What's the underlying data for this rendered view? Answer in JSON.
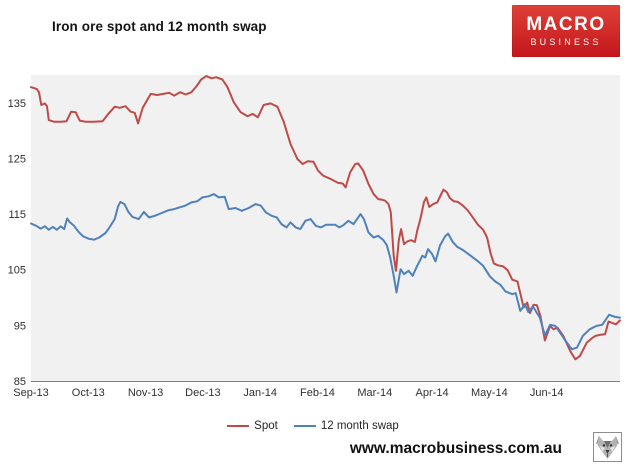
{
  "title": "Iron ore spot and 12 month swap",
  "branding": {
    "logo_line1": "MACRO",
    "logo_line2": "BUSINESS",
    "logo_bg_top": "#de4137",
    "logo_bg_bottom": "#c3161c"
  },
  "footer": {
    "url": "www.macrobusiness.com.au",
    "icon": "wolf-mascot-icon"
  },
  "legend": {
    "items": [
      {
        "label": "Spot",
        "color": "#be4b48"
      },
      {
        "label": "12 month swap",
        "color": "#4f81bd"
      }
    ]
  },
  "chart_data": {
    "type": "line",
    "title": "Iron ore spot and 12 month swap",
    "x_unit": "months since Sep-2013",
    "x_tick_labels": [
      "Sep-13",
      "Oct-13",
      "Nov-13",
      "Dec-13",
      "Jan-14",
      "Feb-14",
      "Mar-14",
      "Apr-14",
      "May-14",
      "Jun-14"
    ],
    "x_tick_positions": [
      0,
      1,
      2,
      3,
      4,
      5,
      6,
      7,
      8,
      9
    ],
    "xlim": [
      0,
      10.28
    ],
    "y_ticks": [
      85,
      95,
      105,
      115,
      125,
      135
    ],
    "ylim": [
      85,
      140
    ],
    "grid": false,
    "legend_position": "bottom-center",
    "plot_bg": "#f1f1f1",
    "axis_color": "#7f7f7f",
    "label_color": "#303030",
    "series": [
      {
        "name": "Spot",
        "color": "#be4b48",
        "points": [
          [
            0.0,
            137.8
          ],
          [
            0.1,
            137.5
          ],
          [
            0.14,
            136.9
          ],
          [
            0.18,
            134.6
          ],
          [
            0.24,
            134.9
          ],
          [
            0.28,
            134.4
          ],
          [
            0.31,
            131.9
          ],
          [
            0.4,
            131.6
          ],
          [
            0.52,
            131.6
          ],
          [
            0.62,
            131.7
          ],
          [
            0.7,
            133.4
          ],
          [
            0.78,
            133.3
          ],
          [
            0.85,
            131.8
          ],
          [
            0.95,
            131.6
          ],
          [
            1.1,
            131.6
          ],
          [
            1.25,
            131.7
          ],
          [
            1.35,
            133.0
          ],
          [
            1.46,
            134.3
          ],
          [
            1.55,
            134.1
          ],
          [
            1.65,
            134.4
          ],
          [
            1.74,
            133.4
          ],
          [
            1.81,
            133.2
          ],
          [
            1.87,
            131.3
          ],
          [
            1.95,
            134.1
          ],
          [
            2.01,
            135.2
          ],
          [
            2.09,
            136.6
          ],
          [
            2.2,
            136.4
          ],
          [
            2.31,
            136.6
          ],
          [
            2.41,
            136.8
          ],
          [
            2.5,
            136.3
          ],
          [
            2.6,
            136.9
          ],
          [
            2.7,
            136.5
          ],
          [
            2.8,
            136.9
          ],
          [
            2.89,
            138.0
          ],
          [
            2.97,
            139.2
          ],
          [
            3.06,
            139.8
          ],
          [
            3.15,
            139.4
          ],
          [
            3.23,
            139.6
          ],
          [
            3.34,
            139.2
          ],
          [
            3.43,
            137.8
          ],
          [
            3.54,
            135.1
          ],
          [
            3.66,
            133.3
          ],
          [
            3.78,
            132.6
          ],
          [
            3.87,
            133.0
          ],
          [
            3.96,
            132.4
          ],
          [
            4.06,
            134.6
          ],
          [
            4.18,
            134.9
          ],
          [
            4.3,
            134.3
          ],
          [
            4.41,
            131.6
          ],
          [
            4.47,
            129.6
          ],
          [
            4.53,
            127.6
          ],
          [
            4.65,
            124.9
          ],
          [
            4.74,
            124.0
          ],
          [
            4.83,
            124.5
          ],
          [
            4.93,
            124.4
          ],
          [
            5.01,
            122.8
          ],
          [
            5.1,
            121.9
          ],
          [
            5.23,
            121.3
          ],
          [
            5.36,
            120.6
          ],
          [
            5.44,
            120.5
          ],
          [
            5.49,
            119.8
          ],
          [
            5.57,
            122.5
          ],
          [
            5.66,
            124.0
          ],
          [
            5.71,
            124.1
          ],
          [
            5.8,
            122.8
          ],
          [
            5.89,
            120.4
          ],
          [
            5.98,
            118.6
          ],
          [
            6.06,
            117.7
          ],
          [
            6.12,
            117.6
          ],
          [
            6.18,
            117.4
          ],
          [
            6.24,
            116.8
          ],
          [
            6.28,
            115.3
          ],
          [
            6.33,
            107.5
          ],
          [
            6.37,
            104.8
          ],
          [
            6.42,
            110.3
          ],
          [
            6.46,
            112.3
          ],
          [
            6.51,
            109.6
          ],
          [
            6.57,
            110.1
          ],
          [
            6.63,
            110.3
          ],
          [
            6.7,
            110.0
          ],
          [
            6.74,
            112.0
          ],
          [
            6.8,
            114.3
          ],
          [
            6.86,
            117.2
          ],
          [
            6.9,
            118.0
          ],
          [
            6.95,
            116.3
          ],
          [
            7.02,
            116.8
          ],
          [
            7.09,
            117.1
          ],
          [
            7.15,
            118.4
          ],
          [
            7.2,
            119.4
          ],
          [
            7.26,
            118.9
          ],
          [
            7.31,
            117.9
          ],
          [
            7.38,
            117.3
          ],
          [
            7.45,
            117.2
          ],
          [
            7.53,
            116.6
          ],
          [
            7.62,
            115.7
          ],
          [
            7.71,
            114.4
          ],
          [
            7.8,
            113.1
          ],
          [
            7.89,
            112.2
          ],
          [
            7.96,
            110.8
          ],
          [
            8.02,
            108.0
          ],
          [
            8.08,
            106.1
          ],
          [
            8.15,
            105.8
          ],
          [
            8.24,
            105.6
          ],
          [
            8.32,
            104.9
          ],
          [
            8.4,
            103.2
          ],
          [
            8.49,
            102.9
          ],
          [
            8.55,
            100.3
          ],
          [
            8.6,
            98.2
          ],
          [
            8.66,
            99.1
          ],
          [
            8.71,
            97.2
          ],
          [
            8.77,
            98.7
          ],
          [
            8.83,
            98.6
          ],
          [
            8.89,
            96.7
          ],
          [
            8.97,
            92.3
          ],
          [
            9.06,
            94.9
          ],
          [
            9.12,
            94.3
          ],
          [
            9.19,
            94.6
          ],
          [
            9.29,
            93.1
          ],
          [
            9.41,
            90.4
          ],
          [
            9.5,
            88.9
          ],
          [
            9.58,
            89.5
          ],
          [
            9.7,
            91.9
          ],
          [
            9.79,
            92.7
          ],
          [
            9.85,
            93.1
          ],
          [
            9.94,
            93.3
          ],
          [
            10.02,
            93.4
          ],
          [
            10.08,
            95.7
          ],
          [
            10.15,
            95.4
          ],
          [
            10.21,
            95.2
          ],
          [
            10.28,
            95.9
          ]
        ]
      },
      {
        "name": "12 month swap",
        "color": "#4f81bd",
        "points": [
          [
            0.0,
            113.3
          ],
          [
            0.09,
            112.9
          ],
          [
            0.17,
            112.4
          ],
          [
            0.24,
            112.8
          ],
          [
            0.31,
            112.2
          ],
          [
            0.38,
            112.7
          ],
          [
            0.45,
            112.2
          ],
          [
            0.52,
            112.8
          ],
          [
            0.58,
            112.3
          ],
          [
            0.63,
            114.2
          ],
          [
            0.68,
            113.5
          ],
          [
            0.75,
            112.9
          ],
          [
            0.83,
            111.8
          ],
          [
            0.91,
            111.0
          ],
          [
            1.0,
            110.6
          ],
          [
            1.1,
            110.4
          ],
          [
            1.19,
            110.8
          ],
          [
            1.3,
            111.6
          ],
          [
            1.37,
            112.6
          ],
          [
            1.46,
            114.1
          ],
          [
            1.52,
            116.4
          ],
          [
            1.56,
            117.2
          ],
          [
            1.63,
            116.8
          ],
          [
            1.7,
            115.4
          ],
          [
            1.77,
            114.5
          ],
          [
            1.88,
            114.1
          ],
          [
            1.97,
            115.4
          ],
          [
            2.06,
            114.4
          ],
          [
            2.16,
            114.7
          ],
          [
            2.26,
            115.1
          ],
          [
            2.4,
            115.7
          ],
          [
            2.5,
            115.9
          ],
          [
            2.59,
            116.2
          ],
          [
            2.69,
            116.5
          ],
          [
            2.8,
            117.1
          ],
          [
            2.9,
            117.3
          ],
          [
            2.99,
            118.0
          ],
          [
            3.1,
            118.2
          ],
          [
            3.19,
            118.6
          ],
          [
            3.28,
            118.0
          ],
          [
            3.38,
            118.1
          ],
          [
            3.45,
            115.9
          ],
          [
            3.57,
            116.1
          ],
          [
            3.68,
            115.6
          ],
          [
            3.8,
            116.1
          ],
          [
            3.92,
            116.8
          ],
          [
            4.01,
            116.5
          ],
          [
            4.1,
            115.3
          ],
          [
            4.2,
            114.7
          ],
          [
            4.29,
            114.4
          ],
          [
            4.37,
            113.2
          ],
          [
            4.46,
            112.6
          ],
          [
            4.53,
            113.5
          ],
          [
            4.62,
            112.6
          ],
          [
            4.7,
            112.3
          ],
          [
            4.79,
            113.8
          ],
          [
            4.88,
            114.1
          ],
          [
            4.97,
            112.9
          ],
          [
            5.06,
            112.6
          ],
          [
            5.15,
            113.1
          ],
          [
            5.31,
            113.1
          ],
          [
            5.38,
            112.6
          ],
          [
            5.45,
            113.0
          ],
          [
            5.54,
            113.8
          ],
          [
            5.63,
            113.2
          ],
          [
            5.75,
            115.0
          ],
          [
            5.81,
            114.1
          ],
          [
            5.89,
            111.7
          ],
          [
            5.98,
            110.8
          ],
          [
            6.06,
            111.1
          ],
          [
            6.15,
            110.3
          ],
          [
            6.21,
            109.4
          ],
          [
            6.27,
            107.2
          ],
          [
            6.33,
            103.9
          ],
          [
            6.38,
            100.9
          ],
          [
            6.45,
            105.1
          ],
          [
            6.51,
            104.2
          ],
          [
            6.59,
            104.8
          ],
          [
            6.66,
            103.9
          ],
          [
            6.74,
            105.7
          ],
          [
            6.83,
            107.5
          ],
          [
            6.88,
            107.2
          ],
          [
            6.93,
            108.7
          ],
          [
            7.0,
            107.8
          ],
          [
            7.06,
            106.5
          ],
          [
            7.14,
            109.4
          ],
          [
            7.23,
            111.0
          ],
          [
            7.28,
            111.5
          ],
          [
            7.36,
            110.0
          ],
          [
            7.44,
            109.1
          ],
          [
            7.53,
            108.6
          ],
          [
            7.65,
            107.7
          ],
          [
            7.79,
            106.6
          ],
          [
            7.89,
            105.7
          ],
          [
            8.01,
            103.8
          ],
          [
            8.1,
            102.9
          ],
          [
            8.19,
            102.3
          ],
          [
            8.28,
            101.1
          ],
          [
            8.4,
            100.6
          ],
          [
            8.46,
            100.8
          ],
          [
            8.54,
            97.6
          ],
          [
            8.62,
            98.8
          ],
          [
            8.68,
            97.4
          ],
          [
            8.76,
            98.4
          ],
          [
            8.88,
            96.4
          ],
          [
            8.97,
            93.2
          ],
          [
            9.06,
            95.1
          ],
          [
            9.15,
            94.9
          ],
          [
            9.24,
            93.6
          ],
          [
            9.33,
            92.2
          ],
          [
            9.44,
            90.7
          ],
          [
            9.53,
            91.0
          ],
          [
            9.63,
            93.1
          ],
          [
            9.75,
            94.3
          ],
          [
            9.87,
            94.9
          ],
          [
            9.97,
            95.1
          ],
          [
            10.09,
            96.9
          ],
          [
            10.2,
            96.5
          ],
          [
            10.28,
            96.4
          ]
        ]
      }
    ]
  }
}
